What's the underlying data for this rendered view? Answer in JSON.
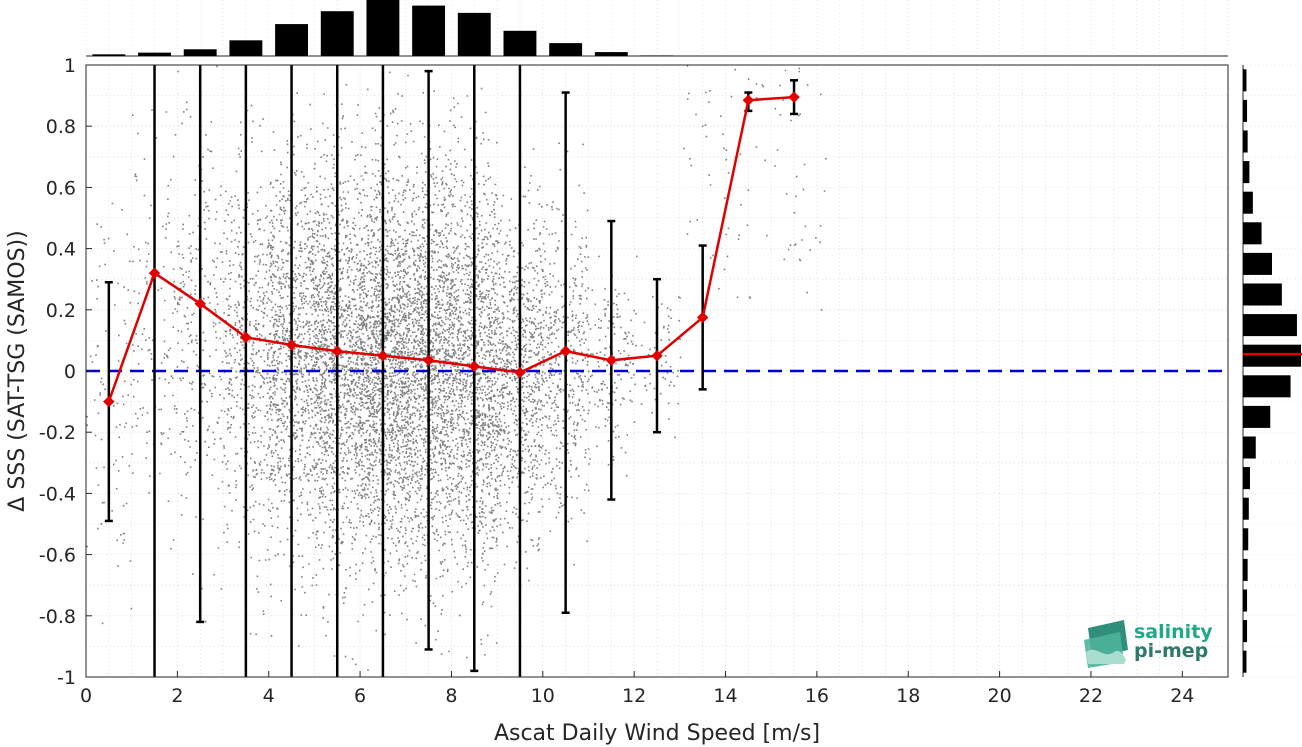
{
  "chart_data": {
    "type": "scatter",
    "xlabel": "Ascat Daily Wind Speed [m/s]",
    "ylabel": "Δ SSS (SAT-TSG (SAMOS))",
    "xlim": [
      0,
      25
    ],
    "ylim": [
      -1,
      1
    ],
    "x_ticks": [
      0,
      2,
      4,
      6,
      8,
      10,
      12,
      14,
      16,
      18,
      20,
      22,
      24
    ],
    "y_ticks": [
      -1,
      -0.8,
      -0.6,
      -0.4,
      -0.2,
      0,
      0.2,
      0.4,
      0.6,
      0.8,
      1
    ],
    "x_tick_labels": [
      "0",
      "2",
      "4",
      "6",
      "8",
      "10",
      "12",
      "14",
      "16",
      "18",
      "20",
      "22",
      "24"
    ],
    "y_tick_labels": [
      "-1",
      "-0.8",
      "-0.6",
      "-0.4",
      "-0.2",
      "0",
      "0.2",
      "0.4",
      "0.6",
      "0.8",
      "1"
    ],
    "grid": true,
    "reference_line": {
      "y": 0,
      "color": "#0000dd",
      "style": "dashed"
    },
    "scatter_color": "#808080",
    "binned_series": {
      "color": "#e00000",
      "x": [
        0.5,
        1.5,
        2.5,
        3.5,
        4.5,
        5.5,
        6.5,
        7.5,
        8.5,
        9.5,
        10.5,
        11.5,
        12.5,
        13.5,
        14.5,
        15.5
      ],
      "mean": [
        -0.1,
        0.32,
        0.22,
        0.11,
        0.085,
        0.065,
        0.05,
        0.035,
        0.015,
        -0.005,
        0.065,
        0.035,
        0.05,
        0.175,
        0.885,
        0.895
      ],
      "err_low": [
        -0.49,
        -1.2,
        -0.82,
        -1.2,
        -1.2,
        -1.2,
        -1.2,
        -0.91,
        -0.98,
        -1.2,
        -0.79,
        -0.42,
        -0.2,
        -0.06,
        0.85,
        0.84
      ],
      "err_high": [
        0.29,
        1.2,
        1.2,
        1.2,
        1.2,
        1.2,
        1.2,
        0.98,
        1.2,
        1.2,
        0.91,
        0.49,
        0.3,
        0.41,
        0.91,
        0.95
      ]
    },
    "top_histogram": {
      "bins": [
        0.5,
        1.5,
        2.5,
        3.5,
        4.5,
        5.5,
        6.5,
        7.5,
        8.5,
        9.5,
        10.5,
        11.5,
        12.5
      ],
      "counts": [
        0.03,
        0.06,
        0.12,
        0.28,
        0.57,
        0.8,
        1.0,
        0.9,
        0.77,
        0.45,
        0.23,
        0.07,
        0.01
      ]
    },
    "right_histogram": {
      "bins": [
        -0.95,
        -0.85,
        -0.75,
        -0.65,
        -0.55,
        -0.45,
        -0.35,
        -0.25,
        -0.15,
        -0.05,
        0.05,
        0.15,
        0.25,
        0.35,
        0.45,
        0.55,
        0.65,
        0.75,
        0.85,
        0.95
      ],
      "counts": [
        0.06,
        0.07,
        0.07,
        0.08,
        0.09,
        0.1,
        0.12,
        0.22,
        0.47,
        0.82,
        1.0,
        0.93,
        0.67,
        0.5,
        0.32,
        0.17,
        0.11,
        0.08,
        0.07,
        0.06
      ],
      "median_line": {
        "y": 0.055,
        "color": "#e00000"
      }
    }
  },
  "logo": {
    "line1": "salinity",
    "line2": "pi-mep"
  }
}
